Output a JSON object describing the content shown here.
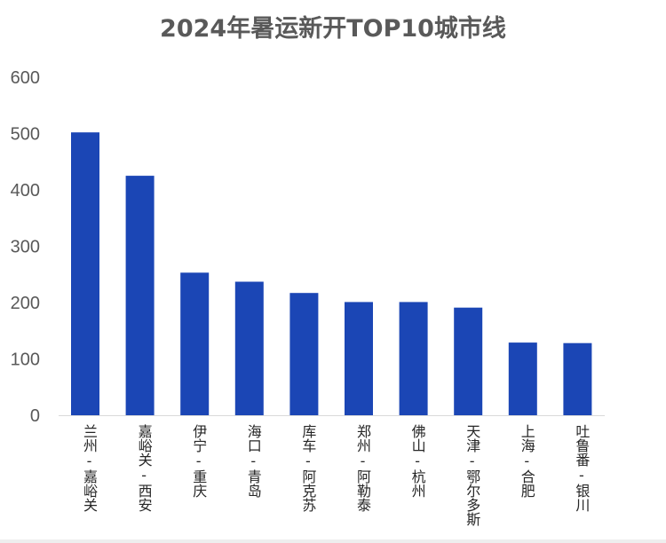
{
  "chart_data": {
    "type": "bar",
    "title": "2024年暑运新开TOP10城市线",
    "categories": [
      "兰州-嘉峪关",
      "嘉峪关-西安",
      "伊宁-重庆",
      "海口-青岛",
      "库车-阿克苏",
      "郑州-阿勒泰",
      "佛山-杭州",
      "天津-鄂尔多斯",
      "上海-合肥",
      "吐鲁番-银川"
    ],
    "values": [
      502,
      425,
      253,
      237,
      217,
      201,
      201,
      191,
      129,
      128
    ],
    "ylim": [
      0,
      600
    ],
    "yticks": [
      "0",
      "100",
      "200",
      "300",
      "400",
      "500",
      "600"
    ],
    "xlabel": "",
    "ylabel": "",
    "grid": false,
    "colors": {
      "bar": "#1B46B5"
    }
  }
}
